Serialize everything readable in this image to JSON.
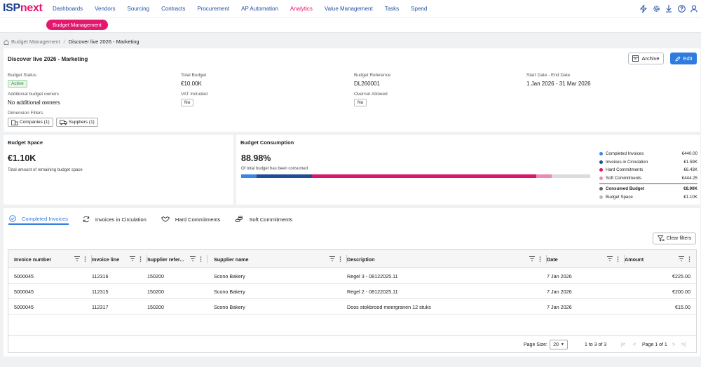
{
  "brand": {
    "part1": "ISP",
    "part2": "next"
  },
  "nav": {
    "items": [
      "Dashboards",
      "Vendors",
      "Sourcing",
      "Contracts",
      "Procurement",
      "AP Automation",
      "Analytics",
      "Value Management",
      "Tasks",
      "Spend"
    ],
    "active": "Analytics",
    "icons": [
      "bolt-icon",
      "gear-icon",
      "download-icon",
      "help-icon",
      "user-icon"
    ]
  },
  "subnav": {
    "pill": "Budget Management"
  },
  "breadcrumb": {
    "root": "Budget Management",
    "separator": "/",
    "current": "Discover live 2026 - Marketing"
  },
  "budget": {
    "title": "Discover live 2026 - Marketing",
    "archive_label": "Archive",
    "edit_label": "Edit",
    "status_label": "Budget Status",
    "status_value": "Active",
    "total_label": "Total Budget",
    "total_value": "€10.00K",
    "reference_label": "Budget Reference",
    "reference_value": "DL260001",
    "dates_label": "Start Date - End Date",
    "dates_value": "1 Jan 2026 - 31 Mar 2026",
    "owners_label": "Additional budget owners",
    "owners_value": "No additional owners",
    "vat_label": "VAT Included",
    "vat_value": "No",
    "overrun_label": "Overrun Allowed",
    "overrun_value": "No",
    "dimension_label": "Dimension Filters",
    "chip_companies": "Companies (1)",
    "chip_suppliers": "Suppliers (1)"
  },
  "space": {
    "title": "Budget Space",
    "value": "€1.10K",
    "caption": "Total amount of remaining budget space"
  },
  "consumption": {
    "title": "Budget Consumption",
    "value": "88.98%",
    "caption": "Of total budget has been consumed",
    "segments": [
      {
        "name": "Completed Invoices",
        "fraction": 0.044,
        "color": "#3a86e8"
      },
      {
        "name": "Invoices in Circulation",
        "fraction": 0.159,
        "color": "#1f4e96"
      },
      {
        "name": "Hard Commitments",
        "fraction": 0.643,
        "color": "#d8186a"
      },
      {
        "name": "Soft Commitments",
        "fraction": 0.0444,
        "color": "#ea8ab8"
      }
    ],
    "legend": [
      {
        "label": "Completed Invoices",
        "value": "€440.00",
        "color": "#3a86e8"
      },
      {
        "label": "Invoices in Circulation",
        "value": "€1.59K",
        "color": "#1f4e96"
      },
      {
        "label": "Hard Commitments",
        "value": "€6.43K",
        "color": "#d8186a"
      },
      {
        "label": "Soft Commitments",
        "value": "€444.25",
        "color": "#ea8ab8"
      }
    ],
    "totals": [
      {
        "label": "Consumed Budget",
        "value": "€8.90K",
        "color": "#666666"
      },
      {
        "label": "Budget Space",
        "value": "€1.10K",
        "color": "#bbbbbb"
      }
    ]
  },
  "tabs": [
    {
      "label": "Completed Invoices",
      "icon": "check-circle-icon",
      "active": true
    },
    {
      "label": "Invoices in Circulation",
      "icon": "refresh-icon",
      "active": false
    },
    {
      "label": "Hard Commitments",
      "icon": "handshake-icon",
      "active": false
    },
    {
      "label": "Soft Commitments",
      "icon": "coins-icon",
      "active": false
    }
  ],
  "clear_filters": "Clear filters",
  "table": {
    "columns": [
      "Invoice number",
      "Invoice line",
      "Supplier refer...",
      "Supplier name",
      "Description",
      "Date",
      "Amount"
    ],
    "rows": [
      [
        "5000045",
        "112316",
        "150200",
        "Scono Bakery",
        "Regel 3 - 08122025.11",
        "7 Jan 2026",
        "€225.00"
      ],
      [
        "5000045",
        "112315",
        "150200",
        "Scono Bakery",
        "Regel 2 - 08122025.11",
        "7 Jan 2026",
        "€200.00"
      ],
      [
        "5000045",
        "112317",
        "150200",
        "Scono Bakery",
        "Doos stokbrood meergranen 12 stuks",
        "7 Jan 2026",
        "€15.00"
      ]
    ]
  },
  "pagination": {
    "page_size_label": "Page Size:",
    "page_size": "20",
    "range": "1 to 3 of 3",
    "page_text": "Page 1 of 1"
  }
}
